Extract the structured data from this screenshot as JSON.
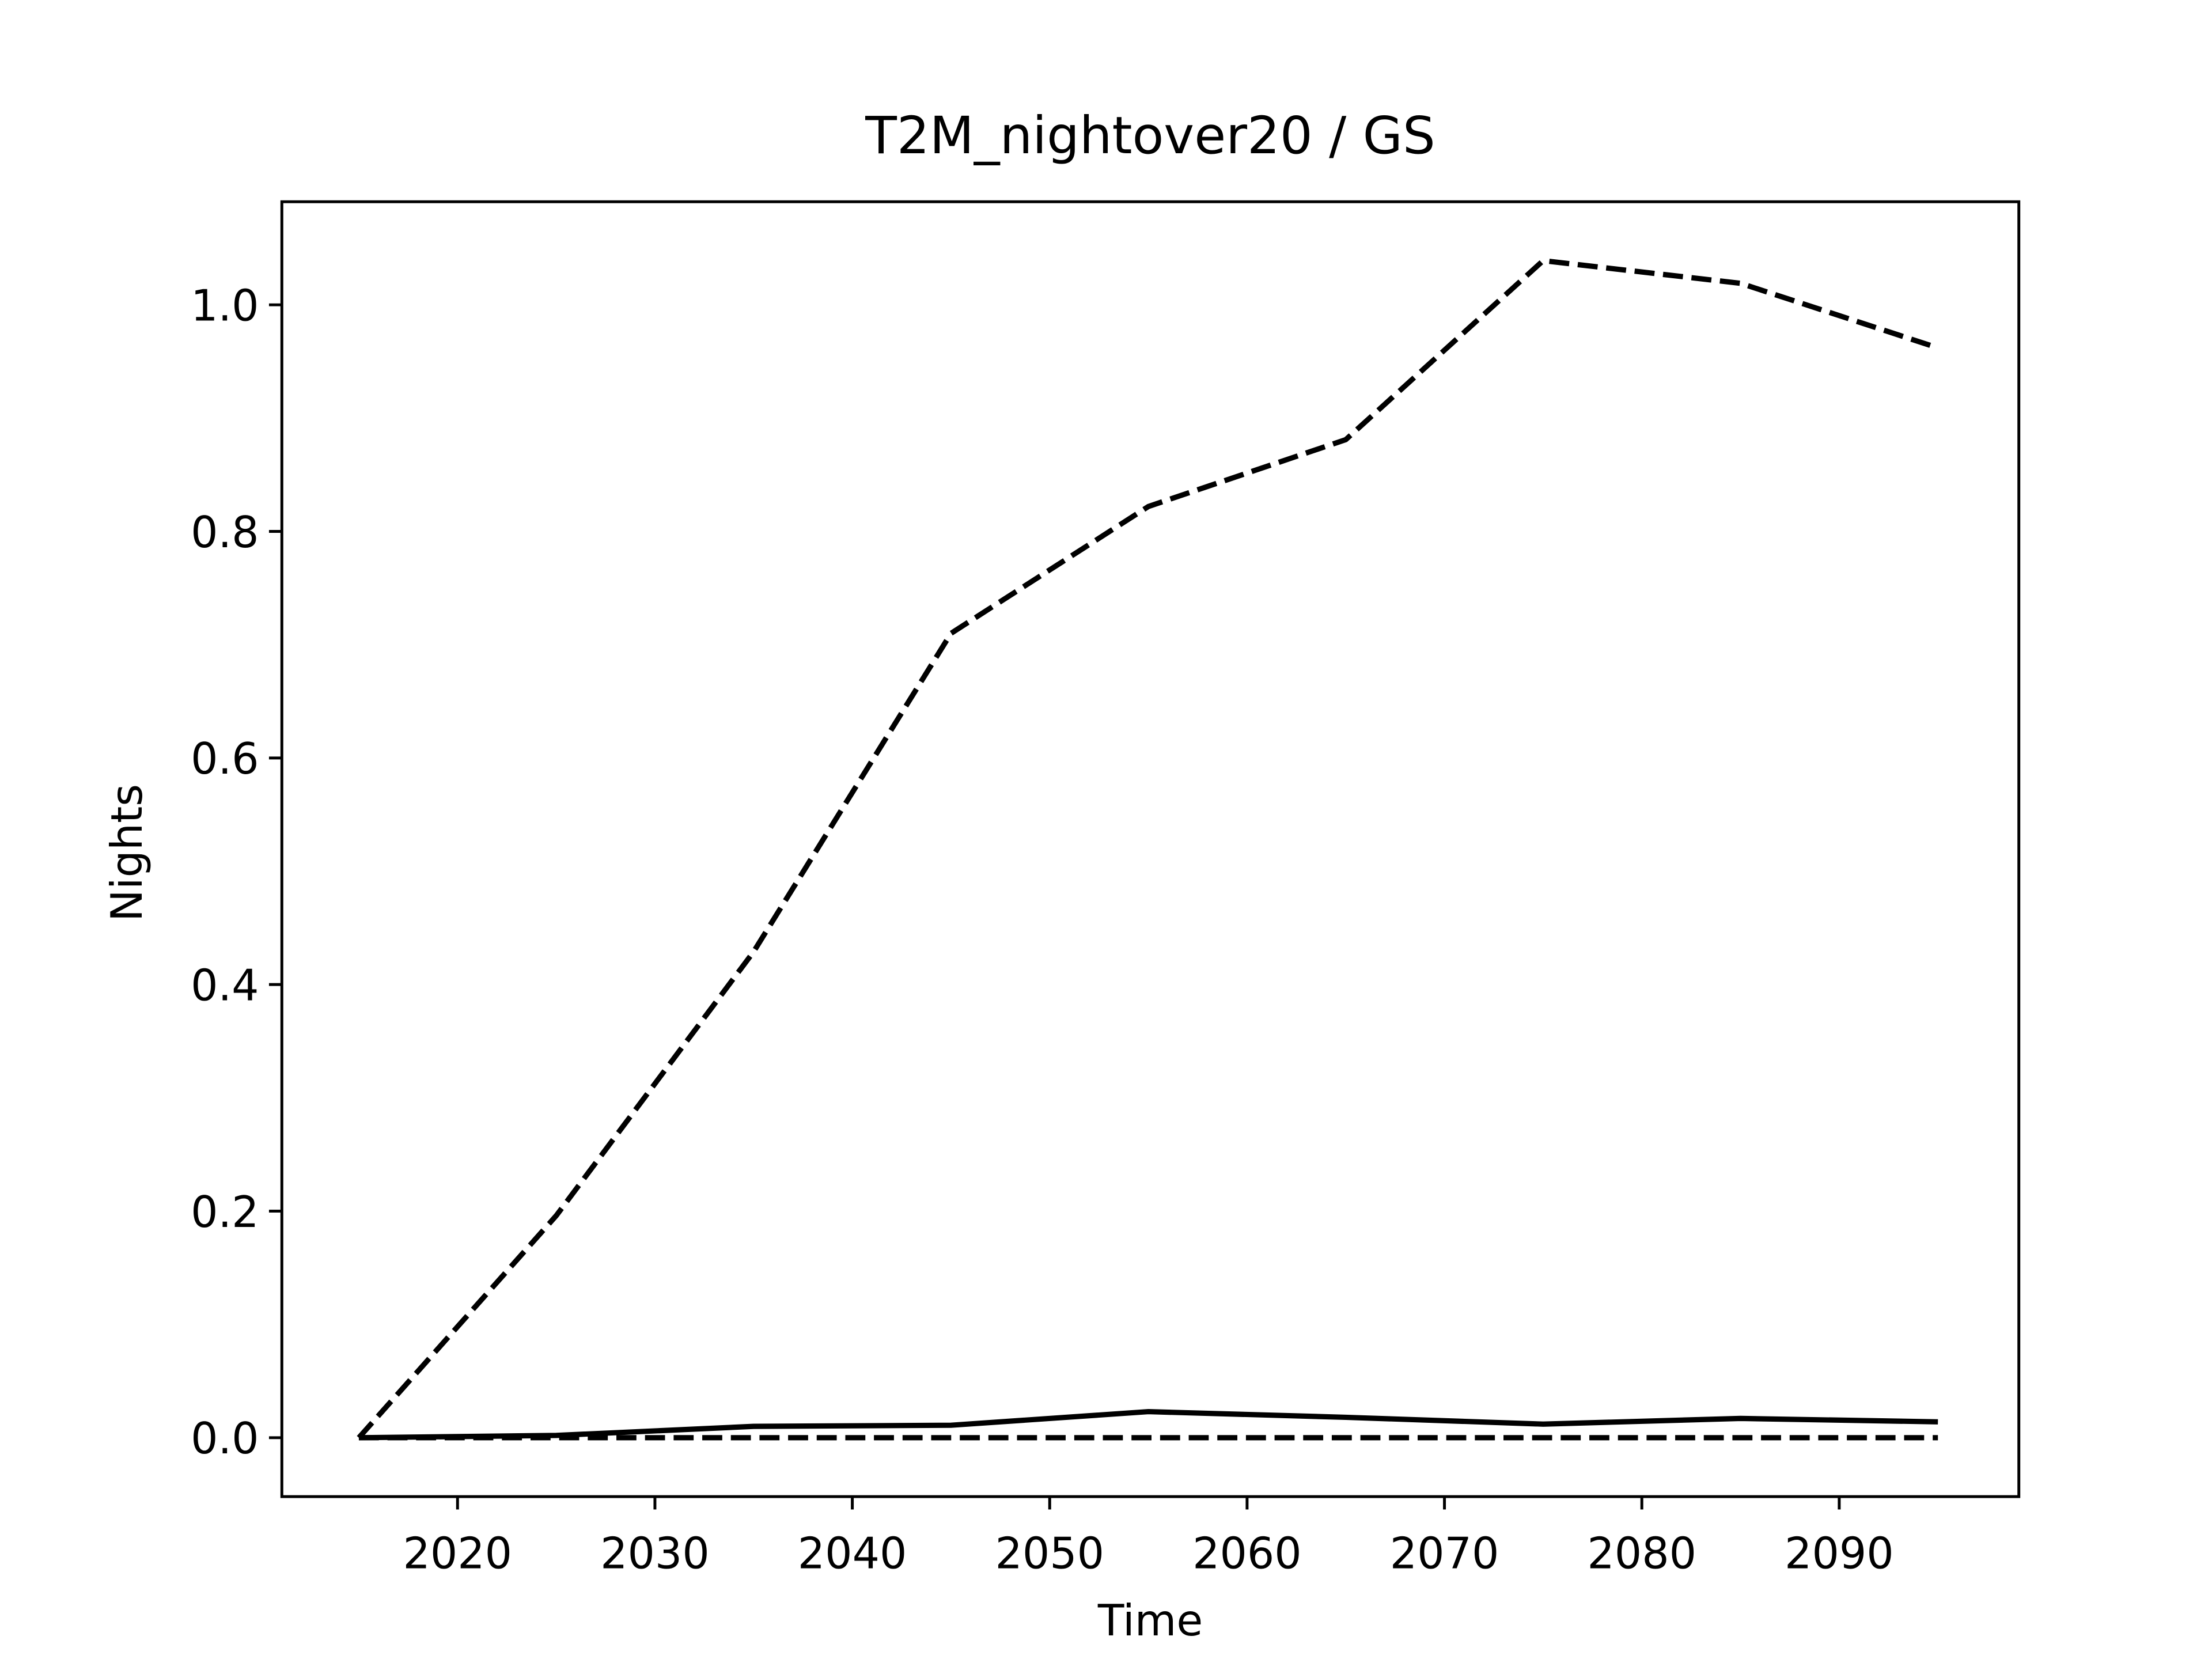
{
  "chart_data": {
    "type": "line",
    "title": "T2M_nightover20 / GS",
    "x_label": "Time",
    "y_label": "Nights",
    "x": [
      2015,
      2025,
      2035,
      2045,
      2055,
      2065,
      2075,
      2085,
      2095
    ],
    "series": [
      {
        "color": "#000000",
        "linestyle": "dashed",
        "values": [
          0,
          0.196,
          0.429,
          0.71,
          0.822,
          0.881,
          1.039,
          1.019,
          0.962
        ]
      },
      {
        "color": "#000000",
        "linestyle": "solid",
        "values": [
          0,
          0.002,
          0.01,
          0.011,
          0.023,
          0.018,
          0.012,
          0.017,
          0.014
        ]
      },
      {
        "color": "#000000",
        "linestyle": "dashed",
        "values": [
          0,
          0,
          0,
          0,
          0,
          0,
          0,
          0,
          0
        ]
      }
    ],
    "xlim": [
      2011.1,
      2099.1
    ],
    "ylim": [
      -0.052,
      1.091
    ],
    "xticks": [
      2020,
      2030,
      2040,
      2050,
      2060,
      2070,
      2080,
      2090
    ],
    "yticks": [
      {
        "value": 0,
        "label": "0.0"
      },
      0.2,
      0.4,
      0.6,
      0.8,
      {
        "value": 1,
        "label": "1.0"
      }
    ],
    "grid": false
  }
}
